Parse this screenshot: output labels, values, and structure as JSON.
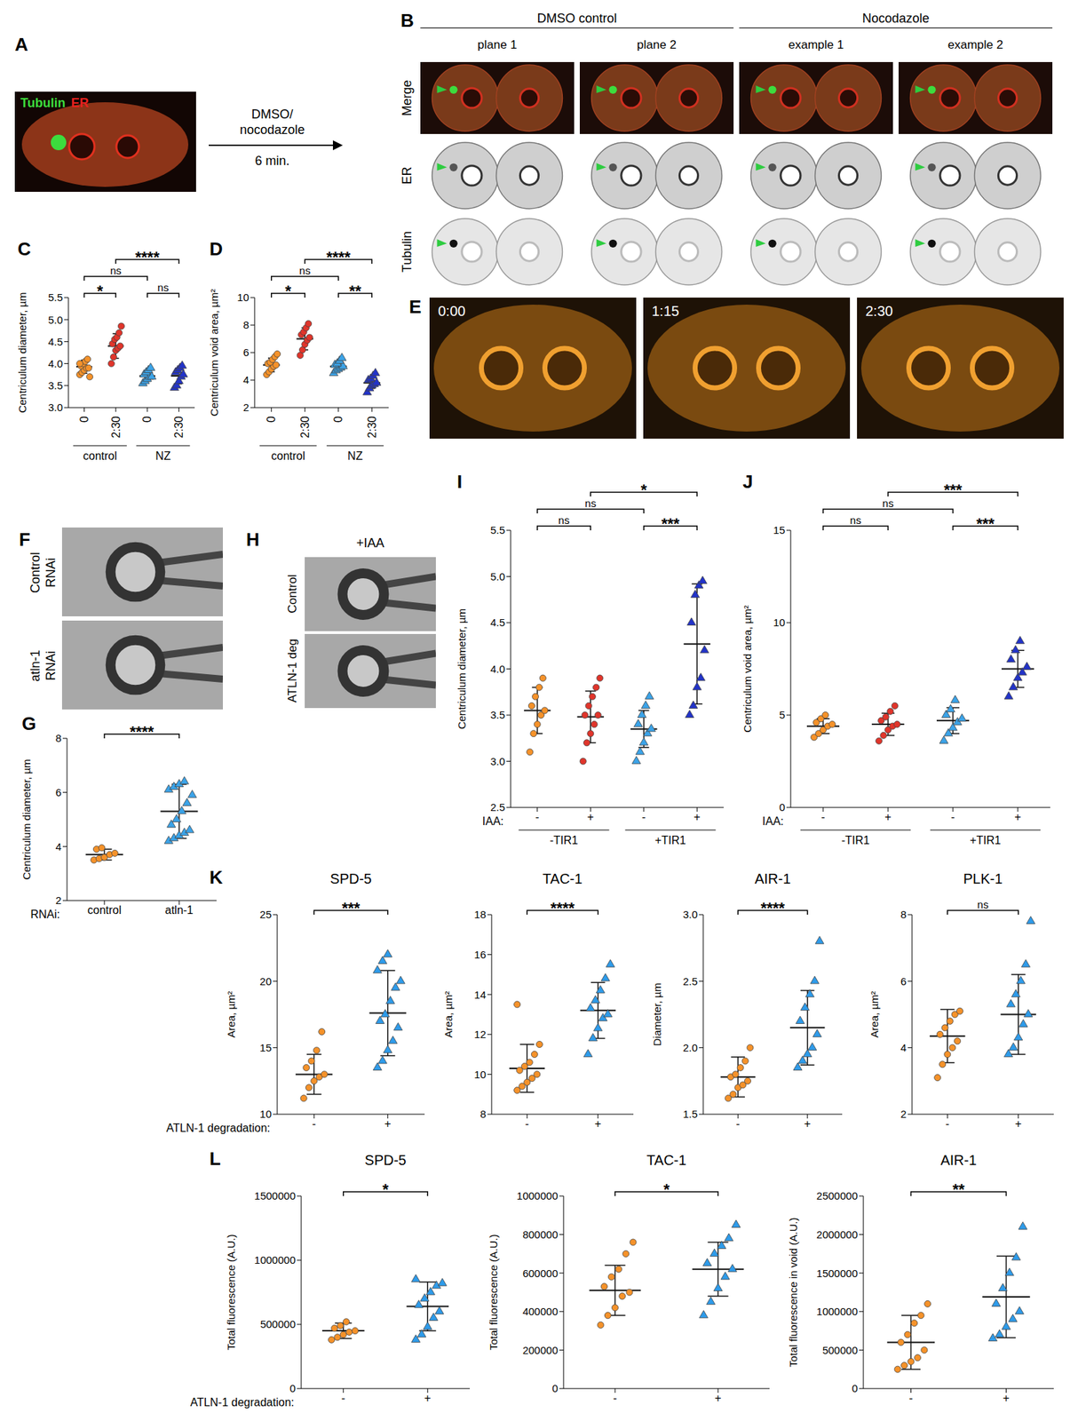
{
  "images": [
    {
      "panel": "A",
      "channels": [
        {
          "text": "Tubulin",
          "color": "#3ddc3d"
        },
        {
          "text": "ER",
          "color": "#e8201e"
        }
      ],
      "treatment": [
        "DMSO/",
        "nocodazole"
      ],
      "duration": "6 min."
    },
    {
      "panel": "B",
      "groups": [
        {
          "title": "DMSO control",
          "columns": [
            "plane 1",
            "plane 2"
          ]
        },
        {
          "title": "Nocodazole",
          "columns": [
            "example 1",
            "example 2"
          ]
        }
      ],
      "rows": [
        "Merge",
        "ER",
        "Tubulin"
      ]
    },
    {
      "panel": "E",
      "frames": [
        "0:00",
        "1:15",
        "2:30"
      ]
    },
    {
      "panel": "F",
      "rows": [
        [
          "Control",
          "RNAi"
        ],
        [
          "atln-1",
          "RNAi"
        ]
      ]
    },
    {
      "panel": "H",
      "header": "+IAA",
      "rows": [
        "Control",
        "ATLN-1 deg"
      ]
    }
  ],
  "chart_data": [
    {
      "panel": "C",
      "type": "dot_plot",
      "ylabel": "Centriculum diameter, µm",
      "categories": [
        "0",
        "2:30",
        "0",
        "2:30"
      ],
      "group_labels": [
        {
          "label": "control",
          "from": 0,
          "to": 1
        },
        {
          "label": "NZ",
          "from": 2,
          "to": 3
        }
      ],
      "ylim": [
        3,
        5.5
      ],
      "yticks": [
        {
          "value": 3,
          "label": "3.0"
        },
        {
          "value": 3.5,
          "label": "3.5"
        },
        {
          "value": 4,
          "label": "4.0"
        },
        {
          "value": 4.5,
          "label": "4.5"
        },
        {
          "value": 5,
          "label": "5.0"
        },
        {
          "value": 5.5,
          "label": "5.5"
        }
      ],
      "groups": [
        {
          "color": "#f5922a",
          "marker": "circle",
          "values": [
            3.75,
            3.8,
            3.85,
            3.9,
            3.9,
            3.95,
            4.0,
            4.05,
            4.1,
            3.7,
            4.0
          ],
          "mean": 3.93,
          "sd": 0.15
        },
        {
          "color": "#e0352b",
          "marker": "circle",
          "values": [
            4.0,
            4.15,
            4.3,
            4.35,
            4.4,
            4.45,
            4.55,
            4.6,
            4.7,
            4.85
          ],
          "mean": 4.4,
          "sd": 0.28
        },
        {
          "color": "#3ba3e8",
          "marker": "triangle",
          "values": [
            3.55,
            3.6,
            3.65,
            3.7,
            3.7,
            3.75,
            3.8,
            3.85,
            3.9
          ],
          "mean": 3.72,
          "sd": 0.12
        },
        {
          "color": "#2233c8",
          "marker": "triangle",
          "values": [
            3.45,
            3.5,
            3.6,
            3.7,
            3.75,
            3.8,
            3.85,
            3.9,
            3.95
          ],
          "mean": 3.72,
          "sd": 0.18
        }
      ],
      "significance": [
        {
          "from": 0,
          "to": 1,
          "label": "*"
        },
        {
          "from": 2,
          "to": 3,
          "label": "ns"
        },
        {
          "from": 0,
          "to": 2,
          "label": "ns"
        },
        {
          "from": 1,
          "to": 3,
          "label": "****"
        }
      ]
    },
    {
      "panel": "D",
      "type": "dot_plot",
      "ylabel": "Centriculum void area, µm²",
      "categories": [
        "0",
        "2:30",
        "0",
        "2:30"
      ],
      "group_labels": [
        {
          "label": "control",
          "from": 0,
          "to": 1
        },
        {
          "label": "NZ",
          "from": 2,
          "to": 3
        }
      ],
      "ylim": [
        2,
        10
      ],
      "yticks": [
        2,
        4,
        6,
        8,
        10
      ],
      "groups": [
        {
          "color": "#f5922a",
          "marker": "circle",
          "values": [
            4.4,
            4.6,
            4.8,
            5.0,
            5.1,
            5.2,
            5.3,
            5.5,
            5.7,
            5.9
          ],
          "mean": 5.1,
          "sd": 0.5
        },
        {
          "color": "#e0352b",
          "marker": "circle",
          "values": [
            5.8,
            6.2,
            6.6,
            6.9,
            7.1,
            7.3,
            7.5,
            7.8,
            8.1
          ],
          "mean": 7.0,
          "sd": 0.8
        },
        {
          "color": "#3ba3e8",
          "marker": "triangle",
          "values": [
            4.5,
            4.7,
            4.8,
            4.9,
            5.0,
            5.1,
            5.2,
            5.4,
            5.6
          ],
          "mean": 5.0,
          "sd": 0.35
        },
        {
          "color": "#2233c8",
          "marker": "triangle",
          "values": [
            3.1,
            3.4,
            3.6,
            3.7,
            3.8,
            4.0,
            4.1,
            4.3,
            4.5
          ],
          "mean": 3.8,
          "sd": 0.4
        }
      ],
      "significance": [
        {
          "from": 0,
          "to": 1,
          "label": "*"
        },
        {
          "from": 2,
          "to": 3,
          "label": "**"
        },
        {
          "from": 0,
          "to": 2,
          "label": "ns"
        },
        {
          "from": 1,
          "to": 3,
          "label": "****"
        }
      ]
    },
    {
      "panel": "G",
      "type": "dot_plot",
      "ylabel": "Centriculum diameter, µm",
      "xlabel": "RNAi:",
      "categories": [
        "control",
        "atln-1"
      ],
      "ylim": [
        2,
        8
      ],
      "yticks": [
        2,
        4,
        6,
        8
      ],
      "groups": [
        {
          "color": "#f5922a",
          "marker": "circle",
          "values": [
            3.5,
            3.55,
            3.6,
            3.7,
            3.75,
            3.9,
            3.95
          ],
          "mean": 3.7,
          "sd": 0.2
        },
        {
          "color": "#3ba3e8",
          "marker": "triangle",
          "values": [
            4.2,
            4.3,
            4.4,
            4.5,
            4.6,
            4.8,
            5.0,
            5.3,
            5.6,
            5.9,
            6.1,
            6.2,
            6.3,
            6.4
          ],
          "mean": 5.3,
          "sd": 1.0
        }
      ],
      "significance": [
        {
          "from": 0,
          "to": 1,
          "label": "****"
        }
      ]
    },
    {
      "panel": "I",
      "type": "dot_plot",
      "ylabel": "Centriculum diameter, µm",
      "xlabel": "IAA:",
      "categories": [
        "-",
        "+",
        "-",
        "+"
      ],
      "group_labels": [
        {
          "label": "-TIR1",
          "from": 0,
          "to": 1
        },
        {
          "label": "+TIR1",
          "from": 2,
          "to": 3
        }
      ],
      "ylim": [
        2.5,
        5.5
      ],
      "yticks": [
        2.5,
        {
          "value": 3,
          "label": "3.0"
        },
        3.5,
        {
          "value": 4,
          "label": "4.0"
        },
        4.5,
        {
          "value": 5,
          "label": "5.0"
        },
        5.5
      ],
      "groups": [
        {
          "color": "#f5922a",
          "marker": "circle",
          "values": [
            3.1,
            3.3,
            3.4,
            3.5,
            3.55,
            3.6,
            3.7,
            3.8,
            3.9
          ],
          "mean": 3.55,
          "sd": 0.25
        },
        {
          "color": "#e0352b",
          "marker": "circle",
          "values": [
            3.0,
            3.2,
            3.3,
            3.4,
            3.5,
            3.5,
            3.6,
            3.7,
            3.8,
            3.9
          ],
          "mean": 3.48,
          "sd": 0.28
        },
        {
          "color": "#3ba3e8",
          "marker": "triangle",
          "values": [
            3.0,
            3.1,
            3.2,
            3.3,
            3.35,
            3.4,
            3.5,
            3.6,
            3.7
          ],
          "mean": 3.35,
          "sd": 0.2
        },
        {
          "color": "#2233c8",
          "marker": "triangle",
          "values": [
            3.5,
            3.6,
            3.8,
            3.9,
            4.2,
            4.5,
            4.8,
            4.9,
            4.95
          ],
          "mean": 4.27,
          "sd": 0.65
        }
      ],
      "significance": [
        {
          "from": 0,
          "to": 1,
          "label": "ns"
        },
        {
          "from": 2,
          "to": 3,
          "label": "***"
        },
        {
          "from": 0,
          "to": 2,
          "label": "ns"
        },
        {
          "from": 1,
          "to": 3,
          "label": "*"
        }
      ]
    },
    {
      "panel": "J",
      "type": "dot_plot",
      "ylabel": "Centriculum void area, µm²",
      "xlabel": "IAA:",
      "categories": [
        "-",
        "+",
        "-",
        "+"
      ],
      "group_labels": [
        {
          "label": "-TIR1",
          "from": 0,
          "to": 1
        },
        {
          "label": "+TIR1",
          "from": 2,
          "to": 3
        }
      ],
      "ylim": [
        0,
        15
      ],
      "yticks": [
        0,
        5,
        10,
        15
      ],
      "groups": [
        {
          "color": "#f5922a",
          "marker": "circle",
          "values": [
            3.8,
            4.0,
            4.2,
            4.4,
            4.5,
            4.6,
            4.8,
            5.0
          ],
          "mean": 4.4,
          "sd": 0.4
        },
        {
          "color": "#e0352b",
          "marker": "circle",
          "values": [
            3.6,
            3.9,
            4.2,
            4.4,
            4.5,
            4.7,
            4.9,
            5.2,
            5.5
          ],
          "mean": 4.5,
          "sd": 0.6
        },
        {
          "color": "#3ba3e8",
          "marker": "triangle",
          "values": [
            3.6,
            4.0,
            4.3,
            4.6,
            4.8,
            5.0,
            5.3,
            5.8
          ],
          "mean": 4.7,
          "sd": 0.7
        },
        {
          "color": "#2233c8",
          "marker": "triangle",
          "values": [
            6.0,
            6.5,
            7.0,
            7.3,
            7.6,
            8.0,
            8.5,
            9.0
          ],
          "mean": 7.5,
          "sd": 1.0
        }
      ],
      "significance": [
        {
          "from": 0,
          "to": 1,
          "label": "ns"
        },
        {
          "from": 2,
          "to": 3,
          "label": "***"
        },
        {
          "from": 0,
          "to": 2,
          "label": "ns"
        },
        {
          "from": 1,
          "to": 3,
          "label": "***"
        }
      ]
    },
    {
      "panel": "K",
      "type": "dot_plot",
      "title": "SPD-5",
      "ylabel": "Area, µm²",
      "xlabel": "ATLN-1 degradation:",
      "categories": [
        "-",
        "+"
      ],
      "ylim": [
        10,
        25
      ],
      "yticks": [
        10,
        15,
        20,
        25
      ],
      "groups": [
        {
          "color": "#f5922a",
          "marker": "circle",
          "values": [
            11.2,
            12.0,
            12.5,
            12.8,
            13.0,
            13.5,
            14.0,
            14.8,
            16.2
          ],
          "mean": 13.0,
          "sd": 1.5
        },
        {
          "color": "#2e9bea",
          "marker": "triangle",
          "values": [
            13.5,
            14.0,
            14.8,
            15.5,
            16.5,
            17.0,
            17.5,
            18.5,
            19.5,
            20.0,
            20.8,
            21.5,
            22.0
          ],
          "mean": 17.6,
          "sd": 3.2
        }
      ],
      "significance": [
        {
          "from": 0,
          "to": 1,
          "label": "***"
        }
      ]
    },
    {
      "type": "dot_plot",
      "title": "TAC-1",
      "ylabel": "Area, µm²",
      "categories": [
        "-",
        "+"
      ],
      "ylim": [
        8,
        18
      ],
      "yticks": [
        8,
        10,
        12,
        14,
        16,
        18
      ],
      "groups": [
        {
          "color": "#f5922a",
          "marker": "circle",
          "values": [
            9.2,
            9.4,
            9.6,
            9.8,
            10.0,
            10.2,
            10.4,
            10.6,
            11.0,
            11.5,
            13.5
          ],
          "mean": 10.3,
          "sd": 1.2
        },
        {
          "color": "#2e9bea",
          "marker": "triangle",
          "values": [
            11.0,
            11.8,
            12.3,
            12.8,
            13.0,
            13.3,
            13.7,
            14.2,
            14.8,
            15.5
          ],
          "mean": 13.2,
          "sd": 1.4
        }
      ],
      "significance": [
        {
          "from": 0,
          "to": 1,
          "label": "****"
        }
      ]
    },
    {
      "type": "dot_plot",
      "title": "AIR-1",
      "ylabel": "Diameter, µm",
      "categories": [
        "-",
        "+"
      ],
      "ylim": [
        1.5,
        3
      ],
      "yticks": [
        1.5,
        {
          "value": 2,
          "label": "2.0"
        },
        2.5,
        {
          "value": 3,
          "label": "3.0"
        }
      ],
      "groups": [
        {
          "color": "#f5922a",
          "marker": "circle",
          "values": [
            1.62,
            1.65,
            1.7,
            1.72,
            1.75,
            1.78,
            1.8,
            1.85,
            1.9,
            2.0
          ],
          "mean": 1.78,
          "sd": 0.15
        },
        {
          "color": "#2e9bea",
          "marker": "triangle",
          "values": [
            1.85,
            1.9,
            1.95,
            2.0,
            2.1,
            2.2,
            2.3,
            2.4,
            2.5,
            2.8
          ],
          "mean": 2.15,
          "sd": 0.28
        }
      ],
      "significance": [
        {
          "from": 0,
          "to": 1,
          "label": "****"
        }
      ]
    },
    {
      "type": "dot_plot",
      "title": "PLK-1",
      "ylabel": "Area, µm²",
      "categories": [
        "-",
        "+"
      ],
      "ylim": [
        2,
        8
      ],
      "yticks": [
        2,
        4,
        6,
        8
      ],
      "groups": [
        {
          "color": "#f5922a",
          "marker": "circle",
          "values": [
            3.1,
            3.5,
            3.8,
            4.0,
            4.2,
            4.4,
            4.6,
            4.8,
            5.0,
            5.1
          ],
          "mean": 4.35,
          "sd": 0.8
        },
        {
          "color": "#2e9bea",
          "marker": "triangle",
          "values": [
            3.8,
            4.0,
            4.3,
            4.7,
            5.0,
            5.3,
            5.6,
            6.0,
            6.5,
            7.8
          ],
          "mean": 5.0,
          "sd": 1.2
        }
      ],
      "significance": [
        {
          "from": 0,
          "to": 1,
          "label": "ns"
        }
      ]
    },
    {
      "panel": "L",
      "type": "dot_plot",
      "title": "SPD-5",
      "ylabel": "Total fluorescence (A.U.)",
      "xlabel": "ATLN-1 degradation:",
      "categories": [
        "-",
        "+"
      ],
      "ylim": [
        0,
        1500000
      ],
      "yticks": [
        0,
        500000,
        1000000,
        1500000
      ],
      "groups": [
        {
          "color": "#f5922a",
          "marker": "circle",
          "values": [
            380000,
            400000,
            420000,
            440000,
            450000,
            470000,
            490000,
            520000
          ],
          "mean": 450000,
          "sd": 60000
        },
        {
          "color": "#2e9bea",
          "marker": "triangle",
          "values": [
            380000,
            420000,
            480000,
            550000,
            600000,
            650000,
            700000,
            750000,
            800000,
            820000,
            850000
          ],
          "mean": 640000,
          "sd": 190000
        }
      ],
      "significance": [
        {
          "from": 0,
          "to": 1,
          "label": "*"
        }
      ]
    },
    {
      "type": "dot_plot",
      "title": "TAC-1",
      "ylabel": "Total fluorescence (A.U.)",
      "categories": [
        "-",
        "+"
      ],
      "ylim": [
        0,
        1000000
      ],
      "yticks": [
        0,
        200000,
        400000,
        600000,
        800000,
        1000000
      ],
      "groups": [
        {
          "color": "#f5922a",
          "marker": "circle",
          "values": [
            330000,
            380000,
            420000,
            480000,
            500000,
            530000,
            580000,
            620000,
            700000,
            760000
          ],
          "mean": 510000,
          "sd": 130000
        },
        {
          "color": "#2e9bea",
          "marker": "triangle",
          "values": [
            380000,
            450000,
            520000,
            580000,
            620000,
            650000,
            700000,
            740000,
            780000,
            850000
          ],
          "mean": 620000,
          "sd": 140000
        }
      ],
      "significance": [
        {
          "from": 0,
          "to": 1,
          "label": "*"
        }
      ]
    },
    {
      "type": "dot_plot",
      "title": "AIR-1",
      "ylabel": "Total fluorescence in void (A.U.)",
      "categories": [
        "-",
        "+"
      ],
      "ylim": [
        0,
        2500000
      ],
      "yticks": [
        0,
        500000,
        1000000,
        1500000,
        2000000,
        2500000
      ],
      "groups": [
        {
          "color": "#f5922a",
          "marker": "circle",
          "values": [
            250000,
            300000,
            350000,
            400000,
            500000,
            600000,
            700000,
            850000,
            950000,
            1100000
          ],
          "mean": 600000,
          "sd": 350000
        },
        {
          "color": "#2e9bea",
          "marker": "triangle",
          "values": [
            650000,
            700000,
            800000,
            900000,
            1000000,
            1100000,
            1300000,
            1500000,
            1700000,
            2100000
          ],
          "mean": 1190000,
          "sd": 530000
        }
      ],
      "significance": [
        {
          "from": 0,
          "to": 1,
          "label": "**"
        }
      ]
    }
  ]
}
